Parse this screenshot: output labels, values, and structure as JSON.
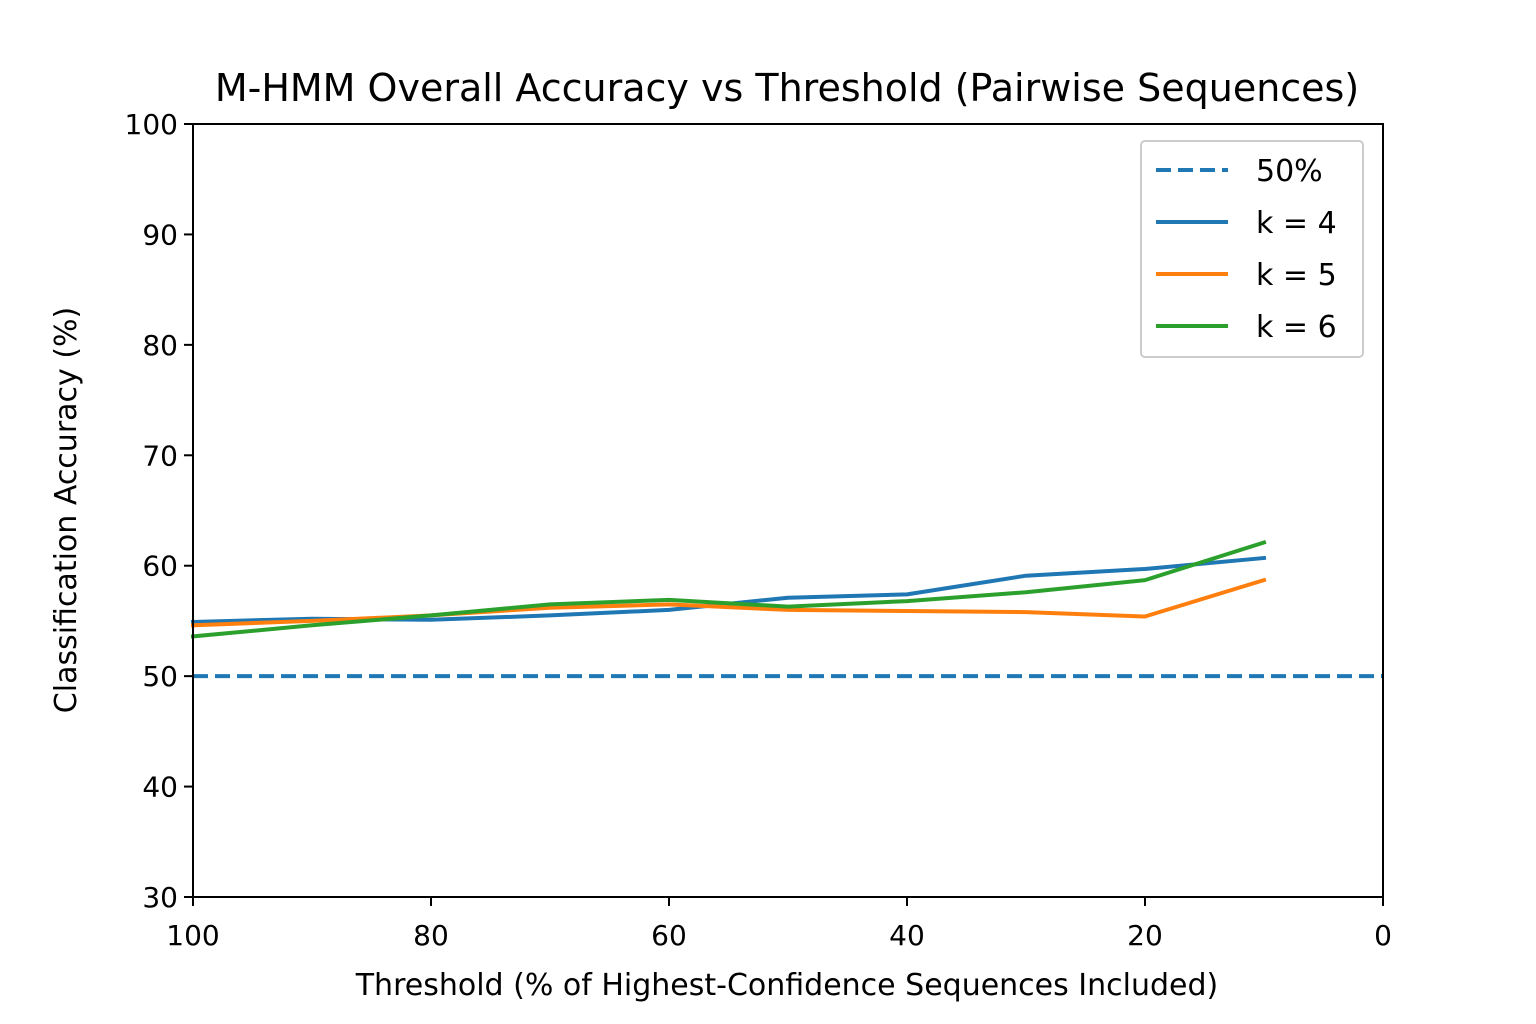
{
  "chart_data": {
    "type": "line",
    "title": "M-HMM Overall Accuracy vs Threshold (Pairwise Sequences)",
    "xlabel": "Threshold (% of Highest-Confidence Sequences Included)",
    "ylabel": "Classification Accuracy (%)",
    "xlim": [
      100,
      0
    ],
    "ylim": [
      30,
      100
    ],
    "x_inverted": true,
    "xticks": [
      "100",
      "80",
      "60",
      "40",
      "20",
      "0"
    ],
    "yticks": [
      "30",
      "40",
      "50",
      "60",
      "70",
      "80",
      "90",
      "100"
    ],
    "grid": false,
    "legend": "top-right",
    "reference_line": {
      "name": "50%",
      "y": 50,
      "style": "dashed",
      "color": "#1f77b4"
    },
    "x": [
      100,
      90,
      80,
      70,
      60,
      50,
      40,
      30,
      20,
      10
    ],
    "series": [
      {
        "name": "k = 4",
        "color": "#1f77b4",
        "values": [
          54.9,
          55.2,
          55.1,
          55.5,
          56.0,
          57.1,
          57.4,
          59.1,
          59.7,
          60.7
        ]
      },
      {
        "name": "k = 5",
        "color": "#ff7f0e",
        "values": [
          54.6,
          55.0,
          55.5,
          56.2,
          56.5,
          56.0,
          55.9,
          55.8,
          55.4,
          58.7
        ]
      },
      {
        "name": "k = 6",
        "color": "#2ca02c",
        "values": [
          53.6,
          54.6,
          55.5,
          56.5,
          56.9,
          56.3,
          56.8,
          57.6,
          58.7,
          62.1
        ]
      }
    ]
  }
}
